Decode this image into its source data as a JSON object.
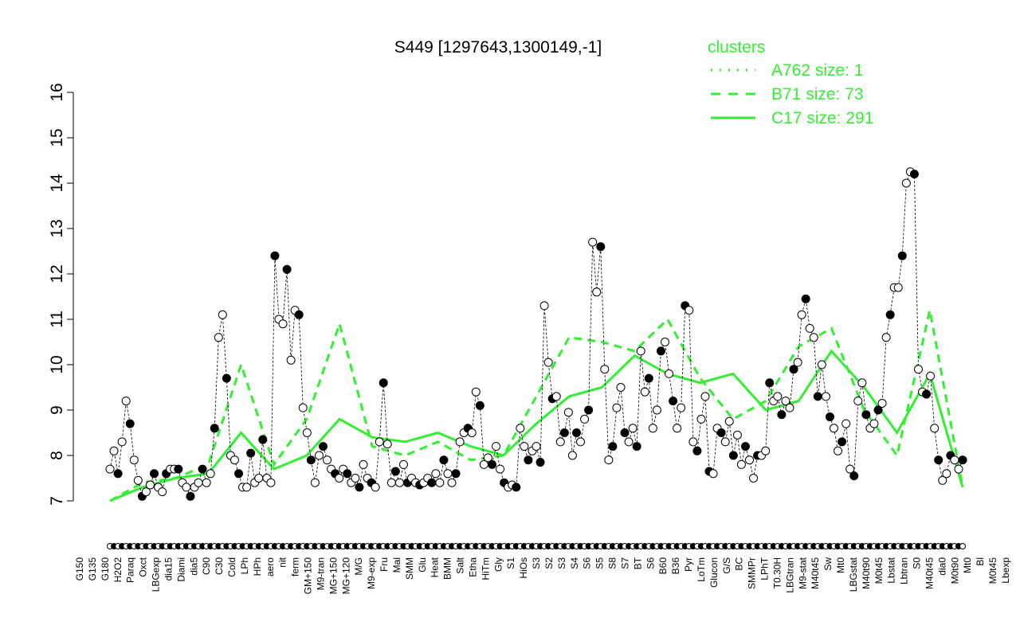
{
  "chart_data": {
    "type": "line",
    "title": "S449 [1297643,1300149,-1]",
    "xlabel": "",
    "ylabel": "",
    "ylim": [
      7,
      16
    ],
    "yticks": [
      7,
      8,
      9,
      10,
      11,
      12,
      13,
      14,
      15,
      16
    ],
    "grid": false,
    "legend": {
      "placement": "top-right",
      "title": "clusters",
      "entries": [
        {
          "label": "A762 size: 1",
          "style": "dotted"
        },
        {
          "label": "B71 size: 73",
          "style": "dashed"
        },
        {
          "label": "C17 size: 291",
          "style": "solid"
        }
      ]
    },
    "colors": {
      "clusters": "#33ee33",
      "points": "#000000",
      "axis": "#000000"
    },
    "xtick_labels_lower": [
      "G150",
      "G180",
      "Paraq",
      "LBGexp",
      "Diami",
      "C90",
      "Cold",
      "HPh",
      "nit",
      "GM+150",
      "MG+150",
      "M/G",
      "Fru",
      "SMM",
      "Heat",
      "Salt",
      "HiTm",
      "S1",
      "S3",
      "S3",
      "S6",
      "S8",
      "BT",
      "B60",
      "Pyr",
      "Glucon",
      "BC",
      "LPhT",
      "LBGtran",
      "M40t45",
      "Mt0",
      "M40t90",
      "Lbstat",
      "S0",
      "dia0",
      "Mt0"
    ],
    "xtick_labels_upper": [
      "G135",
      "H2O2",
      "Oxct",
      "dia15",
      "dia5",
      "C30",
      "LPh",
      "aero",
      "ferm",
      "M9-tran",
      "MG+120",
      "M9-exp",
      "Mal",
      "Glu",
      "BMM",
      "Etha",
      "Gly",
      "HiOs",
      "S2",
      "S4",
      "S5",
      "S7",
      "S6",
      "B36",
      "LoTm",
      "G/S",
      "SMMPr",
      "T0.30H",
      "M9-stat",
      "Sw",
      "LBGstat",
      "M0t45",
      "Lbtran",
      "M40t45",
      "M0t90",
      "Bl",
      "M0t45",
      "Lbexp"
    ],
    "series": [
      {
        "style": "points",
        "values": [
          7.7,
          8.1,
          7.6,
          8.3,
          9.2,
          8.7,
          7.9,
          7.45,
          7.1,
          7.2,
          7.35,
          7.6,
          7.3,
          7.2,
          7.6,
          7.7,
          7.7,
          7.7,
          7.4,
          7.3,
          7.1,
          7.3,
          7.4,
          7.7,
          7.4,
          7.6,
          8.6,
          10.6,
          11.1,
          9.7,
          8.0,
          7.9,
          7.6,
          7.3,
          7.3,
          8.05,
          7.4,
          7.5,
          8.35,
          7.5,
          7.4,
          12.4,
          11.0,
          10.9,
          12.1,
          10.1,
          11.2,
          11.1,
          9.05,
          8.5,
          7.9,
          7.4,
          8.0,
          8.2,
          7.9,
          7.7,
          7.6,
          7.5,
          7.7,
          7.6,
          7.4,
          7.5,
          7.3,
          7.8,
          7.5,
          7.4,
          7.3,
          8.3,
          9.6,
          8.25,
          7.4,
          7.65,
          7.4,
          7.8,
          7.4,
          7.5,
          7.4,
          7.35,
          7.4,
          7.5,
          7.4,
          7.6,
          7.4,
          7.9,
          7.6,
          7.4,
          7.6,
          8.3,
          8.5,
          8.6,
          8.5,
          9.4,
          9.1,
          7.8,
          7.95,
          7.8,
          8.2,
          7.7,
          7.4,
          7.3,
          7.35,
          7.3,
          8.6,
          8.2,
          7.9,
          8.1,
          8.2,
          7.85,
          11.3,
          10.05,
          9.25,
          9.3,
          8.3,
          8.5,
          8.95,
          8.0,
          8.5,
          8.3,
          8.8,
          9.0,
          12.7,
          11.6,
          12.6,
          9.9,
          7.9,
          8.2,
          9.05,
          9.5,
          8.5,
          8.3,
          8.6,
          8.2,
          10.3,
          9.4,
          9.7,
          8.6,
          9.0,
          10.3,
          10.5,
          9.8,
          9.2,
          8.6,
          9.05,
          11.3,
          11.2,
          8.3,
          8.1,
          8.8,
          9.3,
          7.65,
          7.6,
          8.6,
          8.5,
          8.3,
          8.75,
          8.0,
          8.45,
          7.8,
          8.2,
          7.9,
          7.5,
          8.0,
          8.0,
          8.1,
          9.6,
          9.2,
          9.3,
          8.9,
          9.2,
          9.05,
          9.9,
          10.05,
          11.1,
          11.45,
          10.8,
          10.6,
          9.3,
          10.0,
          9.3,
          8.85,
          8.6,
          8.1,
          8.3,
          8.7,
          7.7,
          7.55,
          9.2,
          9.6,
          8.9,
          8.6,
          8.7,
          9.0,
          9.15,
          10.6,
          11.1,
          11.7,
          11.7,
          12.4,
          14.0,
          14.25,
          14.2,
          9.9,
          9.4,
          9.35,
          9.75,
          8.6,
          7.9,
          7.45,
          7.6,
          8.0,
          7.9,
          7.7,
          7.9
        ]
      },
      {
        "name": "B71 size: 73",
        "style": "dashed",
        "values": [
          7.0,
          7.4,
          7.5,
          7.8,
          10.0,
          7.8,
          8.8,
          10.9,
          8.2,
          8.0,
          8.3,
          7.9,
          8.0,
          9.3,
          10.6,
          10.5,
          10.3,
          11.0,
          9.7,
          8.8,
          9.2,
          10.4,
          10.8,
          9.0,
          8.0,
          11.2,
          7.3
        ]
      },
      {
        "name": "C17 size: 291",
        "style": "solid",
        "values": [
          7.0,
          7.3,
          7.5,
          7.6,
          8.5,
          7.7,
          8.0,
          8.8,
          8.4,
          8.3,
          8.5,
          8.2,
          8.0,
          8.7,
          9.3,
          9.5,
          10.2,
          9.8,
          9.6,
          9.8,
          9.0,
          9.2,
          10.3,
          9.5,
          8.5,
          9.8,
          7.3
        ]
      }
    ]
  }
}
